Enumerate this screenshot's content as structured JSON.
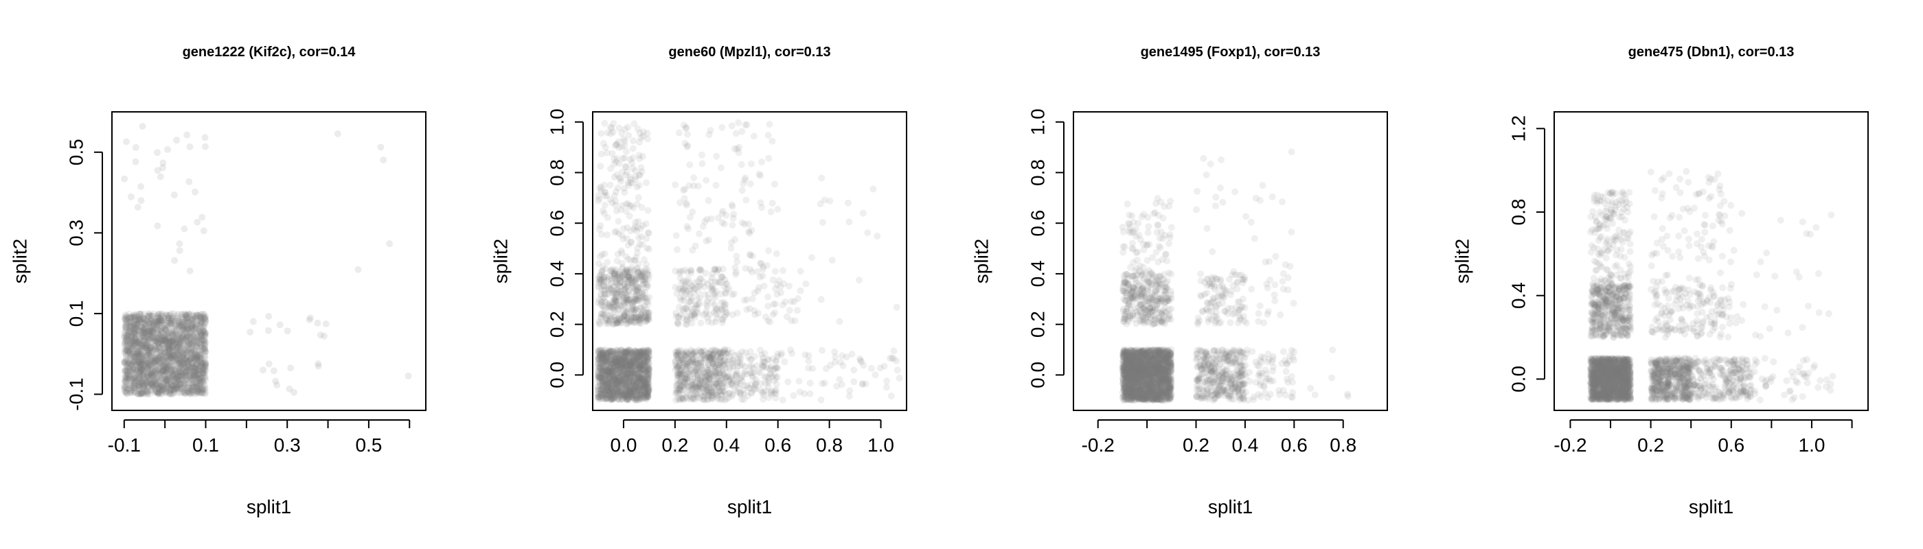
{
  "colors": {
    "point": "#7f7f7f",
    "axis": "#000000",
    "background": "#ffffff"
  },
  "chart_data": [
    {
      "type": "scatter",
      "title": "gene1222 (Kif2c), cor=0.14",
      "xlabel": "split1",
      "ylabel": "split2",
      "xlim": [
        -0.13,
        0.64
      ],
      "ylim": [
        -0.14,
        0.6
      ],
      "xticks": [
        -0.1,
        0.0,
        0.1,
        0.2,
        0.3,
        0.4,
        0.5,
        0.6
      ],
      "xtick_labels": [
        "-0.1",
        "",
        "0.1",
        "",
        "0.3",
        "",
        "0.5",
        ""
      ],
      "yticks": [
        -0.1,
        0.1,
        0.3,
        0.5
      ],
      "ytick_labels": [
        "-0.1",
        "0.1",
        "0.3",
        "0.5"
      ],
      "clusters": [
        {
          "x": [
            -0.1,
            0.1
          ],
          "y": [
            -0.1,
            0.1
          ],
          "n": 2200,
          "alpha": 0.12
        },
        {
          "x": [
            -0.1,
            0.1
          ],
          "y": [
            0.2,
            0.57
          ],
          "n": 32,
          "alpha": 0.15
        },
        {
          "x": [
            0.2,
            0.4
          ],
          "y": [
            -0.1,
            0.1
          ],
          "n": 22,
          "alpha": 0.15
        },
        {
          "x": [
            0.3,
            0.62
          ],
          "y": [
            -0.1,
            0.57
          ],
          "n": 6,
          "alpha": 0.15
        }
      ],
      "grid": false
    },
    {
      "type": "scatter",
      "title": "gene60 (Mpzl1), cor=0.13",
      "xlabel": "split1",
      "ylabel": "split2",
      "xlim": [
        -0.12,
        1.1
      ],
      "ylim": [
        -0.14,
        1.04
      ],
      "xticks": [
        0.0,
        0.2,
        0.4,
        0.6,
        0.8,
        1.0
      ],
      "xtick_labels": [
        "0.0",
        "0.2",
        "0.4",
        "0.6",
        "0.8",
        "1.0"
      ],
      "yticks": [
        0.0,
        0.2,
        0.4,
        0.6,
        0.8,
        1.0
      ],
      "ytick_labels": [
        "0.0",
        "0.2",
        "0.4",
        "0.6",
        "0.8",
        "1.0"
      ],
      "clusters": [
        {
          "x": [
            -0.1,
            0.1
          ],
          "y": [
            -0.1,
            0.1
          ],
          "n": 1400,
          "alpha": 0.12
        },
        {
          "x": [
            -0.1,
            0.1
          ],
          "y": [
            0.2,
            0.42
          ],
          "n": 450,
          "alpha": 0.12
        },
        {
          "x": [
            -0.1,
            0.1
          ],
          "y": [
            0.42,
            1.0
          ],
          "n": 180,
          "alpha": 0.12
        },
        {
          "x": [
            0.2,
            0.4
          ],
          "y": [
            -0.1,
            0.1
          ],
          "n": 480,
          "alpha": 0.12
        },
        {
          "x": [
            0.2,
            0.4
          ],
          "y": [
            0.2,
            0.42
          ],
          "n": 170,
          "alpha": 0.12
        },
        {
          "x": [
            0.4,
            0.6
          ],
          "y": [
            -0.1,
            0.1
          ],
          "n": 160,
          "alpha": 0.12
        },
        {
          "x": [
            0.2,
            0.6
          ],
          "y": [
            0.42,
            1.0
          ],
          "n": 110,
          "alpha": 0.12
        },
        {
          "x": [
            0.4,
            0.7
          ],
          "y": [
            0.2,
            0.42
          ],
          "n": 60,
          "alpha": 0.12
        },
        {
          "x": [
            0.6,
            1.08
          ],
          "y": [
            -0.1,
            0.1
          ],
          "n": 60,
          "alpha": 0.12
        },
        {
          "x": [
            0.7,
            1.08
          ],
          "y": [
            0.2,
            0.8
          ],
          "n": 18,
          "alpha": 0.12
        }
      ],
      "grid": false
    },
    {
      "type": "scatter",
      "title": "gene1495 (Foxp1), cor=0.13",
      "xlabel": "split1",
      "ylabel": "split2",
      "xlim": [
        -0.3,
        0.98
      ],
      "ylim": [
        -0.14,
        1.04
      ],
      "xticks": [
        -0.2,
        0.0,
        0.2,
        0.4,
        0.6,
        0.8
      ],
      "xtick_labels": [
        "-0.2",
        "",
        "0.2",
        "0.4",
        "0.6",
        "0.8"
      ],
      "yticks": [
        0.0,
        0.2,
        0.4,
        0.6,
        0.8,
        1.0
      ],
      "ytick_labels": [
        "0.0",
        "0.2",
        "0.4",
        "0.6",
        "0.8",
        "1.0"
      ],
      "clusters": [
        {
          "x": [
            -0.1,
            0.1
          ],
          "y": [
            -0.1,
            0.1
          ],
          "n": 2000,
          "alpha": 0.12
        },
        {
          "x": [
            -0.1,
            0.1
          ],
          "y": [
            0.2,
            0.4
          ],
          "n": 320,
          "alpha": 0.12
        },
        {
          "x": [
            -0.1,
            0.1
          ],
          "y": [
            0.4,
            0.7
          ],
          "n": 80,
          "alpha": 0.12
        },
        {
          "x": [
            0.2,
            0.4
          ],
          "y": [
            -0.1,
            0.1
          ],
          "n": 360,
          "alpha": 0.12
        },
        {
          "x": [
            0.2,
            0.4
          ],
          "y": [
            0.2,
            0.4
          ],
          "n": 110,
          "alpha": 0.12
        },
        {
          "x": [
            0.4,
            0.6
          ],
          "y": [
            -0.1,
            0.1
          ],
          "n": 70,
          "alpha": 0.12
        },
        {
          "x": [
            0.2,
            0.6
          ],
          "y": [
            0.4,
            0.9
          ],
          "n": 30,
          "alpha": 0.12
        },
        {
          "x": [
            0.4,
            0.6
          ],
          "y": [
            0.2,
            0.4
          ],
          "n": 20,
          "alpha": 0.12
        },
        {
          "x": [
            0.6,
            0.82
          ],
          "y": [
            -0.1,
            0.1
          ],
          "n": 6,
          "alpha": 0.12
        }
      ],
      "grid": false
    },
    {
      "type": "scatter",
      "title": "gene475 (Dbn1), cor=0.13",
      "xlabel": "split1",
      "ylabel": "split2",
      "xlim": [
        -0.28,
        1.28
      ],
      "ylim": [
        -0.15,
        1.28
      ],
      "xticks": [
        -0.2,
        0.0,
        0.2,
        0.4,
        0.6,
        0.8,
        1.0,
        1.2
      ],
      "xtick_labels": [
        "-0.2",
        "",
        "0.2",
        "",
        "0.6",
        "",
        "1.0",
        ""
      ],
      "yticks": [
        0.0,
        0.4,
        0.8,
        1.2
      ],
      "ytick_labels": [
        "0.0",
        "0.4",
        "0.8",
        "1.2"
      ],
      "clusters": [
        {
          "x": [
            -0.1,
            0.1
          ],
          "y": [
            -0.1,
            0.1
          ],
          "n": 1500,
          "alpha": 0.12
        },
        {
          "x": [
            -0.1,
            0.1
          ],
          "y": [
            0.2,
            0.45
          ],
          "n": 420,
          "alpha": 0.12
        },
        {
          "x": [
            -0.1,
            0.1
          ],
          "y": [
            0.45,
            0.9
          ],
          "n": 160,
          "alpha": 0.12
        },
        {
          "x": [
            0.2,
            0.4
          ],
          "y": [
            -0.1,
            0.1
          ],
          "n": 520,
          "alpha": 0.12
        },
        {
          "x": [
            0.4,
            0.7
          ],
          "y": [
            -0.1,
            0.1
          ],
          "n": 230,
          "alpha": 0.12
        },
        {
          "x": [
            0.2,
            0.6
          ],
          "y": [
            0.2,
            0.45
          ],
          "n": 160,
          "alpha": 0.12
        },
        {
          "x": [
            0.2,
            0.6
          ],
          "y": [
            0.45,
            1.0
          ],
          "n": 90,
          "alpha": 0.12
        },
        {
          "x": [
            0.6,
            1.12
          ],
          "y": [
            -0.1,
            0.1
          ],
          "n": 60,
          "alpha": 0.12
        },
        {
          "x": [
            0.6,
            1.1
          ],
          "y": [
            0.2,
            0.8
          ],
          "n": 30,
          "alpha": 0.12
        }
      ],
      "grid": false
    }
  ]
}
